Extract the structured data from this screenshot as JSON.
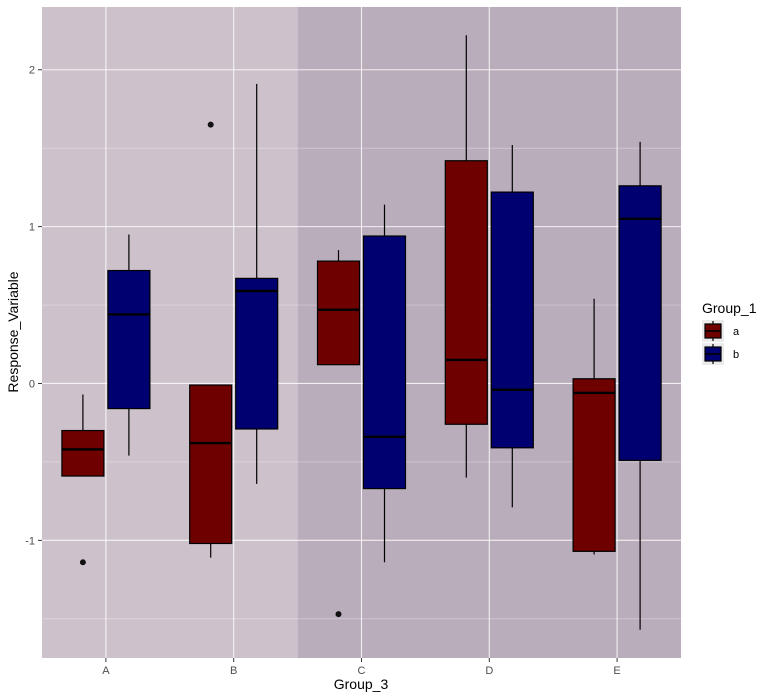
{
  "chart_data": {
    "type": "boxplot",
    "title": "",
    "xlabel": "Group_3",
    "ylabel": "Response_Variable",
    "categories": [
      "A",
      "B",
      "C",
      "D",
      "E"
    ],
    "ylim": [
      -1.75,
      2.4
    ],
    "y_ticks": [
      -1,
      0,
      1,
      2
    ],
    "y_tick_labels": [
      "-1",
      "0",
      "1",
      "2"
    ],
    "grid": true,
    "legend_position": "right",
    "legend_title": "Group_1",
    "background_bands": [
      {
        "categories": [
          "A",
          "B"
        ],
        "color": "#cdc2cc"
      },
      {
        "categories": [
          "C",
          "D",
          "E"
        ],
        "color": "#b9adbb"
      }
    ],
    "series": [
      {
        "name": "a",
        "color": "#6e0000",
        "boxes": [
          {
            "category": "A",
            "whisker_low": -0.59,
            "q1": -0.59,
            "median": -0.42,
            "q3": -0.3,
            "whisker_high": -0.07,
            "outliers": [
              -1.14
            ]
          },
          {
            "category": "B",
            "whisker_low": -1.11,
            "q1": -1.02,
            "median": -0.38,
            "q3": -0.01,
            "whisker_high": -0.01,
            "outliers": [
              1.65
            ]
          },
          {
            "category": "C",
            "whisker_low": 0.12,
            "q1": 0.12,
            "median": 0.47,
            "q3": 0.78,
            "whisker_high": 0.85,
            "outliers": [
              -1.47
            ]
          },
          {
            "category": "D",
            "whisker_low": -0.6,
            "q1": -0.26,
            "median": 0.15,
            "q3": 1.42,
            "whisker_high": 2.22,
            "outliers": []
          },
          {
            "category": "E",
            "whisker_low": -1.09,
            "q1": -1.07,
            "median": -0.06,
            "q3": 0.03,
            "whisker_high": 0.54,
            "outliers": []
          }
        ]
      },
      {
        "name": "b",
        "color": "#000070",
        "boxes": [
          {
            "category": "A",
            "whisker_low": -0.46,
            "q1": -0.16,
            "median": 0.44,
            "q3": 0.72,
            "whisker_high": 0.95,
            "outliers": []
          },
          {
            "category": "B",
            "whisker_low": -0.64,
            "q1": -0.29,
            "median": 0.59,
            "q3": 0.67,
            "whisker_high": 1.91,
            "outliers": []
          },
          {
            "category": "C",
            "whisker_low": -1.14,
            "q1": -0.67,
            "median": -0.34,
            "q3": 0.94,
            "whisker_high": 1.14,
            "outliers": []
          },
          {
            "category": "D",
            "whisker_low": -0.79,
            "q1": -0.41,
            "median": -0.04,
            "q3": 1.22,
            "whisker_high": 1.52,
            "outliers": []
          },
          {
            "category": "E",
            "whisker_low": -1.57,
            "q1": -0.49,
            "median": 1.05,
            "q3": 1.26,
            "whisker_high": 1.54,
            "outliers": []
          }
        ]
      }
    ]
  }
}
